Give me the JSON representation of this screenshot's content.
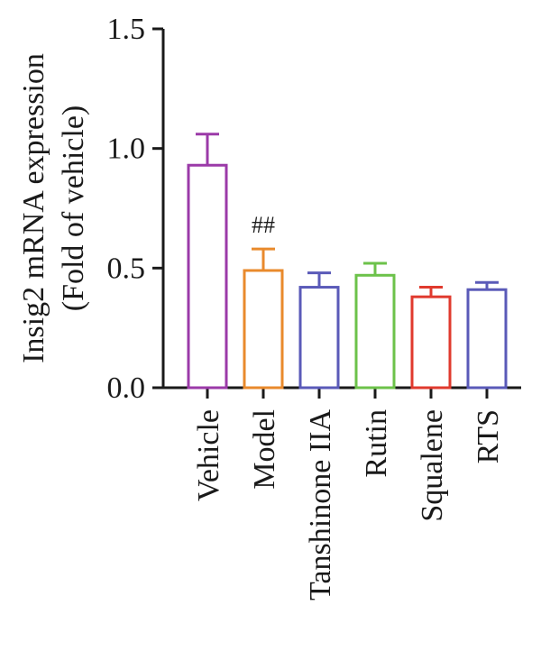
{
  "chart_data": {
    "type": "bar",
    "title": "",
    "ylabel_lines": [
      "Insig2 mRNA expression",
      "(Fold of vehicle)"
    ],
    "xlabel": "",
    "ylim": [
      0,
      1.5
    ],
    "yticks": [
      "0.0",
      "0.5",
      "1.0",
      "1.5"
    ],
    "ytick_values": [
      0,
      0.5,
      1.0,
      1.5
    ],
    "categories": [
      "Vehicle",
      "Model",
      "Tanshinone IIA",
      "Rutin",
      "Squalene",
      "RTS"
    ],
    "values": [
      0.93,
      0.49,
      0.42,
      0.47,
      0.38,
      0.41
    ],
    "errors": [
      0.13,
      0.09,
      0.06,
      0.05,
      0.04,
      0.03
    ],
    "colors": [
      "#9b3aa8",
      "#e98a2c",
      "#5a5ab8",
      "#6cc24a",
      "#e03a2e",
      "#5a5ab8"
    ],
    "annotations": [
      {
        "category": "Model",
        "text": "##"
      }
    ],
    "grid": false,
    "legend": "none"
  }
}
